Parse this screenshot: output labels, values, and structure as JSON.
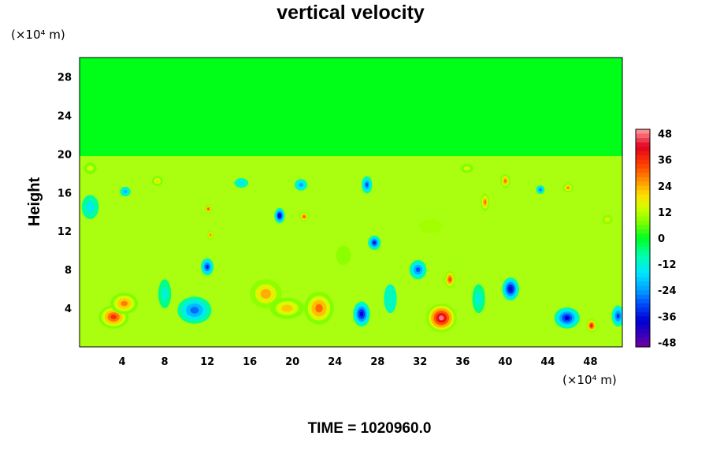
{
  "chart_data": {
    "type": "heatmap",
    "title": "vertical velocity",
    "ylabel": "Height",
    "x_unit_label": "(×10⁴ m)",
    "y_unit_label": "(×10⁴ m)",
    "xlim": [
      0,
      51
    ],
    "ylim": [
      0,
      30
    ],
    "x_ticks": [
      "4",
      "8",
      "12",
      "16",
      "20",
      "24",
      "28",
      "32",
      "36",
      "40",
      "44",
      "48"
    ],
    "y_ticks": [
      "4",
      "8",
      "12",
      "16",
      "20",
      "24",
      "28"
    ],
    "colorbar": {
      "ticks": [
        "48",
        "36",
        "24",
        "12",
        "0",
        "-12",
        "-24",
        "-36",
        "-48"
      ],
      "min": -50,
      "max": 50
    },
    "time_label": "TIME = 1020960.0",
    "field_blobs": [
      {
        "x": 3.2,
        "y": 3.1,
        "w": 2.8,
        "h": 2.4,
        "value": 36
      },
      {
        "x": 4.2,
        "y": 4.5,
        "w": 2.6,
        "h": 2.2,
        "value": 28
      },
      {
        "x": 10.8,
        "y": 3.8,
        "w": 3.2,
        "h": 2.8,
        "value": -28
      },
      {
        "x": 12.0,
        "y": 8.3,
        "w": 1.2,
        "h": 1.8,
        "value": -34
      },
      {
        "x": 17.5,
        "y": 5.5,
        "w": 3.0,
        "h": 3.0,
        "value": 24
      },
      {
        "x": 22.5,
        "y": 4.0,
        "w": 2.8,
        "h": 3.4,
        "value": 30
      },
      {
        "x": 19.5,
        "y": 4.0,
        "w": 3.2,
        "h": 2.2,
        "value": 22
      },
      {
        "x": 26.5,
        "y": 3.4,
        "w": 1.6,
        "h": 2.6,
        "value": -40
      },
      {
        "x": 27.7,
        "y": 10.8,
        "w": 1.2,
        "h": 1.5,
        "value": -36
      },
      {
        "x": 31.8,
        "y": 8.0,
        "w": 1.6,
        "h": 2.0,
        "value": -30
      },
      {
        "x": 34.0,
        "y": 3.0,
        "w": 2.9,
        "h": 3.0,
        "value": 48
      },
      {
        "x": 34.8,
        "y": 7.0,
        "w": 1.0,
        "h": 1.8,
        "value": 34
      },
      {
        "x": 40.5,
        "y": 6.0,
        "w": 1.6,
        "h": 2.4,
        "value": -42
      },
      {
        "x": 45.8,
        "y": 3.0,
        "w": 2.4,
        "h": 2.2,
        "value": -38
      },
      {
        "x": 48.1,
        "y": 2.2,
        "w": 1.0,
        "h": 1.4,
        "value": 40
      },
      {
        "x": 50.6,
        "y": 3.2,
        "w": 1.2,
        "h": 2.2,
        "value": -32
      },
      {
        "x": 18.8,
        "y": 13.6,
        "w": 1.0,
        "h": 1.6,
        "value": -44
      },
      {
        "x": 21.1,
        "y": 13.5,
        "w": 0.9,
        "h": 1.0,
        "value": 32
      },
      {
        "x": 20.8,
        "y": 16.8,
        "w": 1.2,
        "h": 1.2,
        "value": -24
      },
      {
        "x": 27.0,
        "y": 16.8,
        "w": 1.0,
        "h": 1.8,
        "value": -30
      },
      {
        "x": 12.1,
        "y": 14.3,
        "w": 0.7,
        "h": 1.0,
        "value": 32
      },
      {
        "x": 12.3,
        "y": 11.6,
        "w": 0.6,
        "h": 1.0,
        "value": 26
      },
      {
        "x": 7.3,
        "y": 17.2,
        "w": 1.0,
        "h": 1.0,
        "value": 20
      },
      {
        "x": 4.3,
        "y": 16.1,
        "w": 1.0,
        "h": 1.0,
        "value": -22
      },
      {
        "x": 38.1,
        "y": 15.0,
        "w": 0.8,
        "h": 1.8,
        "value": 30
      },
      {
        "x": 40.0,
        "y": 17.2,
        "w": 0.9,
        "h": 1.4,
        "value": 30
      },
      {
        "x": 45.9,
        "y": 16.5,
        "w": 1.0,
        "h": 0.9,
        "value": 28
      },
      {
        "x": 43.3,
        "y": 16.3,
        "w": 0.8,
        "h": 0.9,
        "value": -28
      },
      {
        "x": 49.6,
        "y": 13.2,
        "w": 1.0,
        "h": 1.0,
        "value": 16
      },
      {
        "x": 1.0,
        "y": 18.5,
        "w": 1.2,
        "h": 1.2,
        "value": 14
      },
      {
        "x": 36.4,
        "y": 18.5,
        "w": 1.2,
        "h": 0.9,
        "value": 14
      },
      {
        "x": 33.0,
        "y": 12.5,
        "w": 2.2,
        "h": 1.5,
        "value": 10
      },
      {
        "x": 1.0,
        "y": 14.5,
        "w": 1.6,
        "h": 2.5,
        "value": -14
      },
      {
        "x": 15.2,
        "y": 17.0,
        "w": 1.3,
        "h": 1.0,
        "value": -16
      },
      {
        "x": 8.0,
        "y": 5.5,
        "w": 1.2,
        "h": 3.0,
        "value": -12
      },
      {
        "x": 29.2,
        "y": 5.0,
        "w": 1.2,
        "h": 3.0,
        "value": -10
      },
      {
        "x": 24.8,
        "y": 9.5,
        "w": 1.4,
        "h": 2.0,
        "value": 8
      },
      {
        "x": 37.5,
        "y": 5.0,
        "w": 1.2,
        "h": 3.0,
        "value": -12
      }
    ]
  }
}
